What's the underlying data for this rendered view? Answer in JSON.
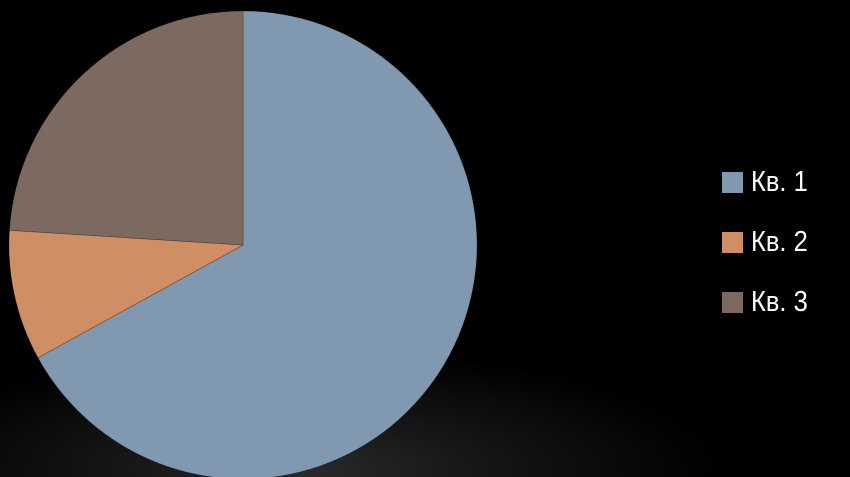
{
  "chart_data": {
    "type": "pie",
    "title": "",
    "categories": [
      "Кв. 1",
      "Кв. 2",
      "Кв. 3"
    ],
    "values": [
      67,
      9,
      24
    ],
    "colors": [
      "#8098b0",
      "#cf8e63",
      "#7c6a60"
    ],
    "start_angle_deg": 0,
    "direction": "clockwise",
    "legend_position": "right"
  }
}
